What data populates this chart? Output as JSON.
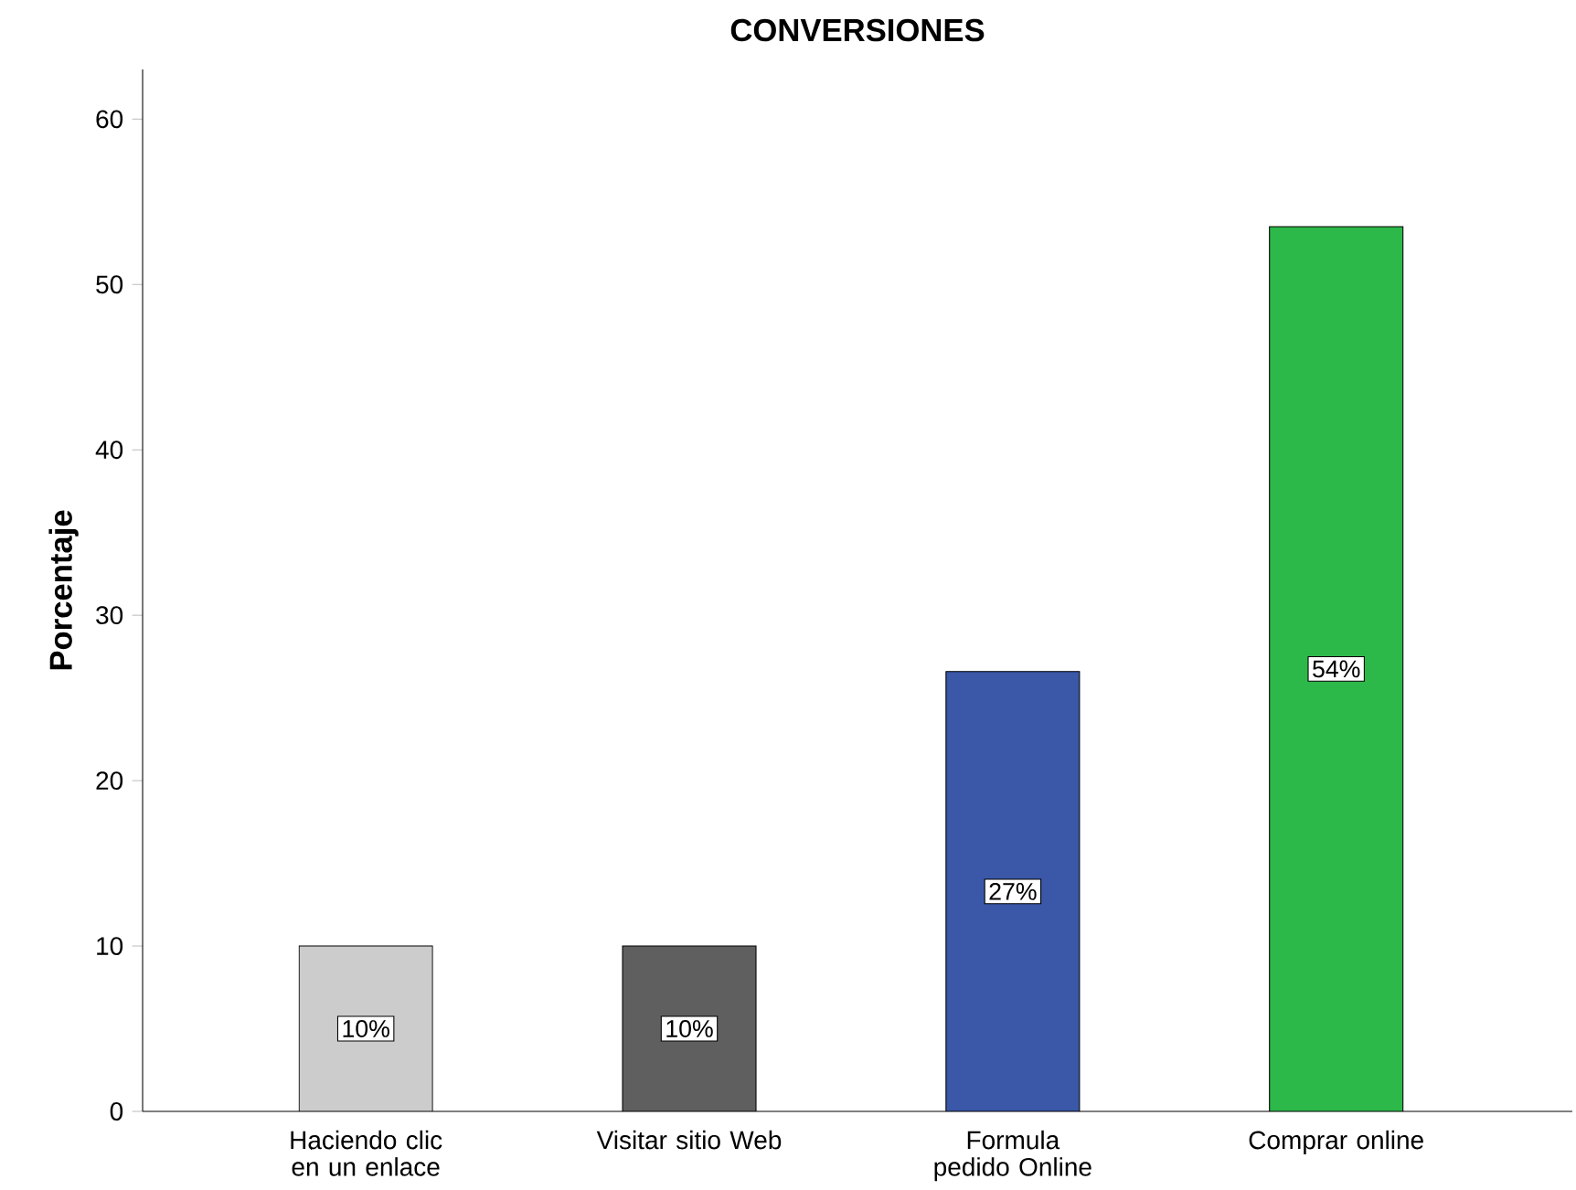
{
  "chart_data": {
    "type": "bar",
    "title": "CONVERSIONES",
    "ylabel": "Porcentaje",
    "categories": [
      "Haciendo clic en un enlace",
      "Visitar sitio Web",
      "Formula pedido Online",
      "Comprar online"
    ],
    "values": [
      10,
      10,
      26.6,
      53.5
    ],
    "value_labels": [
      "10%",
      "10%",
      "27%",
      "54%"
    ],
    "colors": [
      "#cccccc",
      "#5f5f5f",
      "#3a57a8",
      "#2db84a"
    ],
    "ylim": [
      0,
      63
    ],
    "yticks": [
      0,
      10,
      20,
      30,
      40,
      50,
      60
    ]
  }
}
